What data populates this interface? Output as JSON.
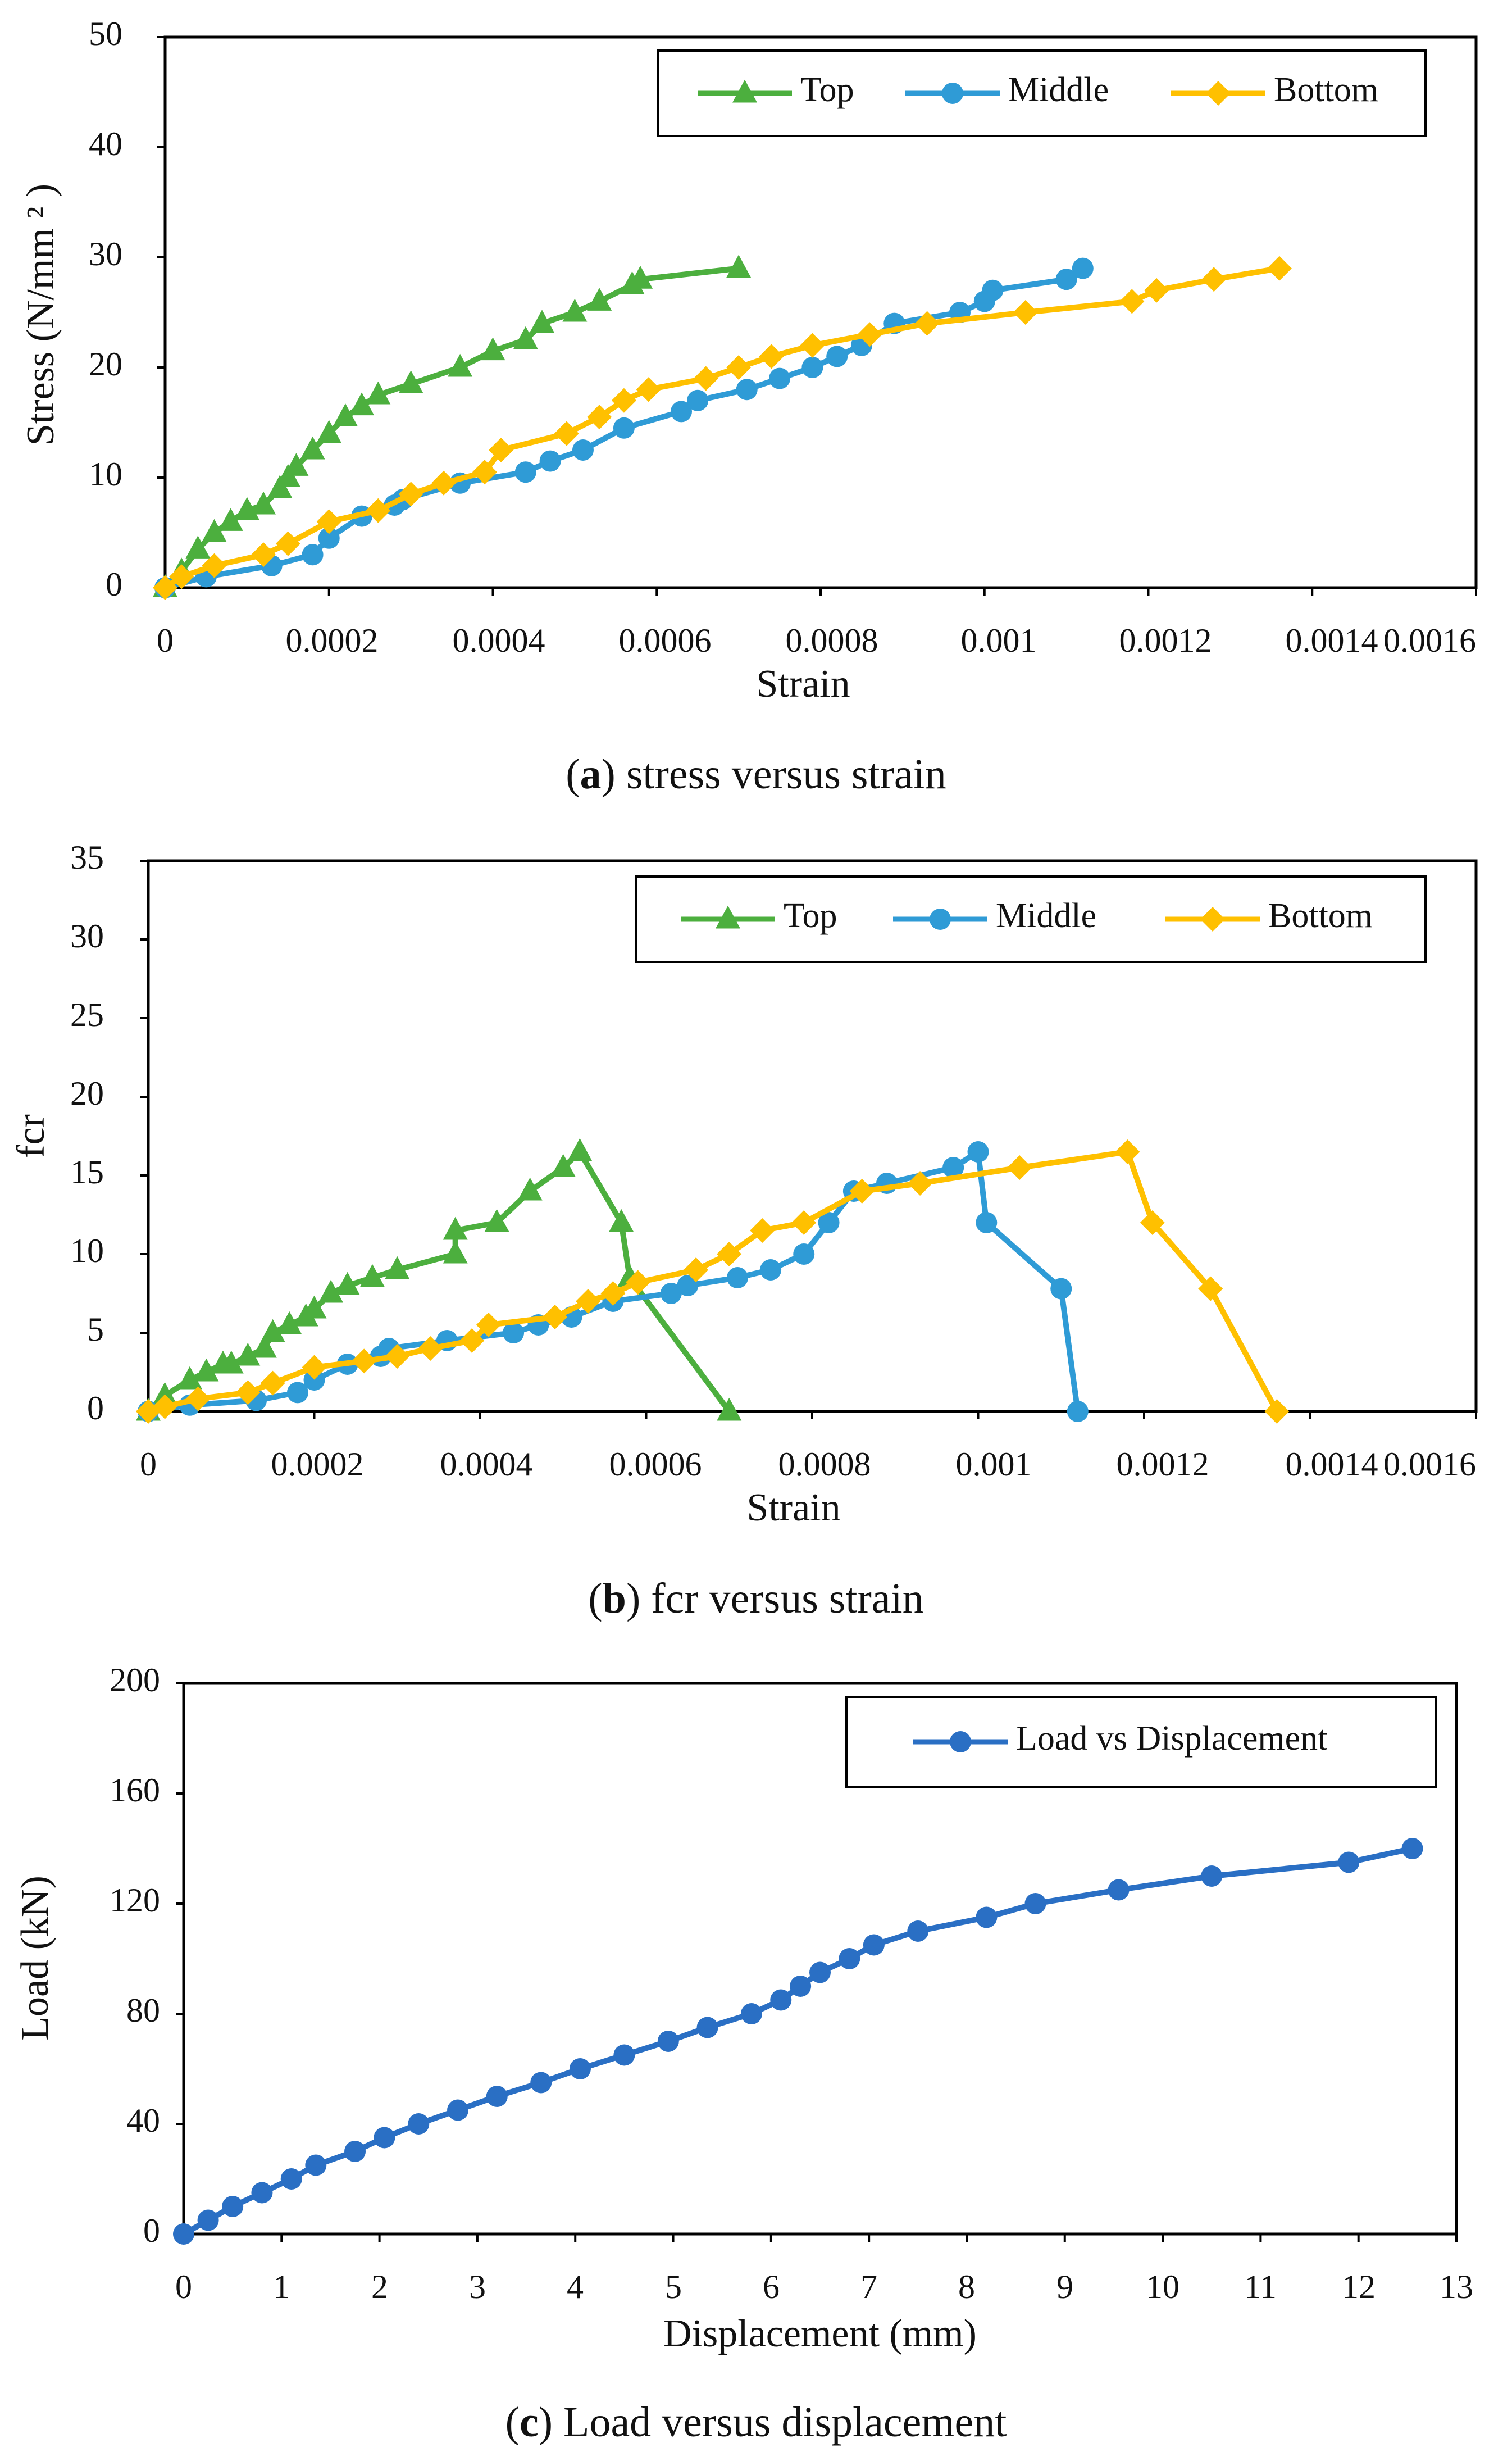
{
  "colors": {
    "top": "#4CAF3E",
    "middle": "#2F9BD6",
    "bottom": "#FFC000",
    "load": "#2A6FC4",
    "axis": "#000000"
  },
  "chart_data": [
    {
      "id": "a",
      "type": "line",
      "caption_letter": "a",
      "caption_text": " stress versus strain",
      "xlabel": "Strain",
      "ylabel": "Stress (N/mm ² )",
      "xlim": [
        0,
        0.0016
      ],
      "ylim": [
        0,
        50
      ],
      "x_ticks": [
        "0",
        "0.0002",
        "0.0004",
        "0.0006",
        "0.0008",
        "0.001",
        "0.0012",
        "0.0014",
        "0.0016"
      ],
      "y_ticks": [
        "0",
        "10",
        "20",
        "30",
        "40",
        "50"
      ],
      "legend_position": "top-right",
      "grid": false,
      "series": [
        {
          "name": "Top",
          "marker": "triangle",
          "color": "#4CAF3E",
          "x": [
            0,
            2e-05,
            4e-05,
            6e-05,
            8e-05,
            0.0001,
            0.00012,
            0.00014,
            0.00015,
            0.00016,
            0.00018,
            0.0002,
            0.00022,
            0.00024,
            0.00026,
            0.0003,
            0.00036,
            0.0004,
            0.00044,
            0.00046,
            0.0005,
            0.00053,
            0.00057,
            0.00058,
            0.0007
          ],
          "y": [
            0,
            1.5,
            3.5,
            5,
            6,
            7,
            7.5,
            9,
            10,
            11,
            12.5,
            14,
            15.5,
            16.5,
            17.5,
            18.5,
            20,
            21.5,
            22.5,
            24,
            25,
            26,
            27.5,
            28,
            29
          ]
        },
        {
          "name": "Middle",
          "marker": "circle",
          "color": "#2F9BD6",
          "x": [
            0,
            5e-05,
            0.00013,
            0.00018,
            0.0002,
            0.00024,
            0.00028,
            0.00029,
            0.00036,
            0.00044,
            0.00047,
            0.00051,
            0.00056,
            0.00063,
            0.00065,
            0.00071,
            0.00075,
            0.00079,
            0.00082,
            0.00085,
            0.00089,
            0.00097,
            0.001,
            0.00101,
            0.0011,
            0.00112
          ],
          "y": [
            0,
            1,
            2,
            3,
            4.5,
            6.5,
            7.5,
            8,
            9.5,
            10.5,
            11.5,
            12.5,
            14.5,
            16,
            17,
            18,
            19,
            20,
            21,
            22,
            24,
            25,
            26,
            27,
            28,
            29
          ]
        },
        {
          "name": "Bottom",
          "marker": "diamond",
          "color": "#FFC000",
          "x": [
            0,
            2e-05,
            6e-05,
            0.00012,
            0.00015,
            0.0002,
            0.00026,
            0.0003,
            0.00034,
            0.00039,
            0.00041,
            0.00049,
            0.00053,
            0.00056,
            0.00059,
            0.00066,
            0.0007,
            0.00074,
            0.00079,
            0.00086,
            0.00093,
            0.00105,
            0.00118,
            0.00121,
            0.00128,
            0.00136
          ],
          "y": [
            0,
            1,
            2,
            3,
            4,
            6,
            7,
            8.5,
            9.5,
            10.5,
            12.5,
            14,
            15.5,
            17,
            18,
            19,
            20,
            21,
            22,
            23,
            24,
            25,
            26,
            27,
            28,
            29
          ]
        }
      ]
    },
    {
      "id": "b",
      "type": "line",
      "caption_letter": "b",
      "caption_text": " fcr versus strain",
      "xlabel": "Strain",
      "ylabel": "fcr",
      "xlim": [
        0,
        0.0016
      ],
      "ylim": [
        0,
        35
      ],
      "x_ticks": [
        "0",
        "0.0002",
        "0.0004",
        "0.0006",
        "0.0008",
        "0.001",
        "0.0012",
        "0.0014",
        "0.0016"
      ],
      "y_ticks": [
        "0",
        "5",
        "10",
        "15",
        "20",
        "25",
        "30",
        "35"
      ],
      "legend_position": "top-right",
      "grid": false,
      "series": [
        {
          "name": "Top",
          "marker": "triangle",
          "color": "#4CAF3E",
          "x": [
            0,
            2e-05,
            5e-05,
            7e-05,
            9e-05,
            0.0001,
            0.00012,
            0.00014,
            0.00015,
            0.00017,
            0.00019,
            0.0002,
            0.00022,
            0.00024,
            0.00027,
            0.0003,
            0.00037,
            0.00037,
            0.00042,
            0.00046,
            0.0005,
            0.00052,
            0.00057,
            0.00058,
            0.0007
          ],
          "y": [
            0,
            1,
            2,
            2.5,
            3,
            3,
            3.5,
            4,
            5,
            5.5,
            6,
            6.5,
            7.5,
            8,
            8.5,
            9,
            10,
            11.5,
            12,
            14,
            15.5,
            16.5,
            12,
            8.5,
            0
          ]
        },
        {
          "name": "Middle",
          "marker": "circle",
          "color": "#2F9BD6",
          "x": [
            0,
            5e-05,
            0.00013,
            0.00018,
            0.0002,
            0.00024,
            0.00028,
            0.00029,
            0.00036,
            0.00044,
            0.00047,
            0.00051,
            0.00056,
            0.00063,
            0.00065,
            0.00071,
            0.00075,
            0.00079,
            0.00082,
            0.00085,
            0.00089,
            0.00097,
            0.001,
            0.00101,
            0.0011,
            0.00112
          ],
          "y": [
            0,
            0.4,
            0.7,
            1.2,
            2,
            3,
            3.5,
            4,
            4.5,
            5,
            5.5,
            6,
            7,
            7.5,
            8,
            8.5,
            9,
            10,
            12,
            14,
            14.5,
            15.5,
            16.5,
            12,
            7.8,
            0
          ]
        },
        {
          "name": "Bottom",
          "marker": "diamond",
          "color": "#FFC000",
          "x": [
            0,
            2e-05,
            6e-05,
            0.00012,
            0.00015,
            0.0002,
            0.00026,
            0.0003,
            0.00034,
            0.00039,
            0.00041,
            0.00049,
            0.00053,
            0.00056,
            0.00059,
            0.00066,
            0.0007,
            0.00074,
            0.00079,
            0.00086,
            0.00093,
            0.00105,
            0.00118,
            0.00121,
            0.00128,
            0.00136
          ],
          "y": [
            0,
            0.3,
            0.8,
            1.2,
            1.8,
            2.8,
            3.2,
            3.5,
            4,
            4.5,
            5.5,
            6,
            7,
            7.5,
            8.2,
            9,
            10,
            11.5,
            12,
            14,
            14.5,
            15.5,
            16.5,
            12,
            7.8,
            0
          ]
        }
      ]
    },
    {
      "id": "c",
      "type": "line",
      "caption_letter": "c",
      "caption_text": " Load versus displacement",
      "xlabel": "Displacement (mm)",
      "ylabel": "Load (kN)",
      "xlim": [
        0,
        13
      ],
      "ylim": [
        0,
        200
      ],
      "x_ticks": [
        "0",
        "1",
        "2",
        "3",
        "4",
        "5",
        "6",
        "7",
        "8",
        "9",
        "10",
        "11",
        "12",
        "13"
      ],
      "y_ticks": [
        "0",
        "40",
        "80",
        "120",
        "160",
        "200"
      ],
      "legend_position": "top-right",
      "grid": false,
      "series": [
        {
          "name": "Load vs Displacement",
          "marker": "circle",
          "color": "#2A6FC4",
          "x": [
            0,
            0.25,
            0.5,
            0.8,
            1.1,
            1.35,
            1.75,
            2.05,
            2.4,
            2.8,
            3.2,
            3.65,
            4.05,
            4.5,
            4.95,
            5.35,
            5.8,
            6.1,
            6.3,
            6.5,
            6.8,
            7.05,
            7.5,
            8.2,
            8.7,
            9.55,
            10.5,
            11.9,
            12.55
          ],
          "y": [
            0,
            5,
            10,
            15,
            20,
            25,
            30,
            35,
            40,
            45,
            50,
            55,
            60,
            65,
            70,
            75,
            80,
            85,
            90,
            95,
            100,
            105,
            110,
            115,
            120,
            125,
            130,
            135,
            140
          ]
        }
      ]
    }
  ]
}
